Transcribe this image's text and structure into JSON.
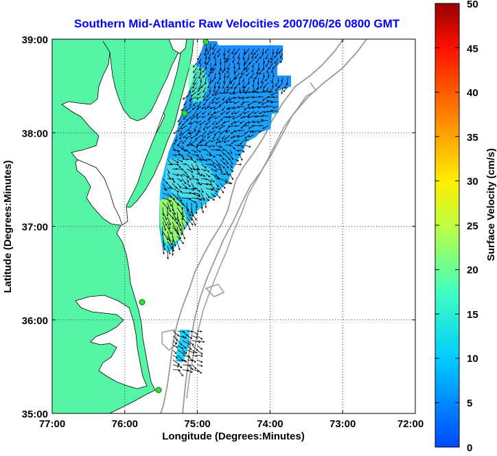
{
  "map": {
    "title": "Southern Mid-Atlantic Raw Velocities 2007/06/26 0800 GMT",
    "title_color": "#0000ff",
    "x_label": "Longitude (Degrees:Minutes)",
    "y_label": "Latitude (Degrees:Minutes)",
    "x_ticks": [
      "77:00",
      "76:00",
      "75:00",
      "74:00",
      "73:00",
      "72:00"
    ],
    "y_ticks": [
      "39:00",
      "38:00",
      "37:00",
      "36:00",
      "35:00"
    ],
    "land_color": "#54f5a4",
    "arrow_color": "#000000",
    "station_color": "#33dd33"
  },
  "colorbar": {
    "label": "Surface Velocity (cm/s)",
    "ticks": [
      "50",
      "45",
      "40",
      "35",
      "30",
      "25",
      "20",
      "15",
      "10",
      "5",
      "0"
    ],
    "min": 0,
    "max": 50,
    "colormap": "jet"
  }
}
